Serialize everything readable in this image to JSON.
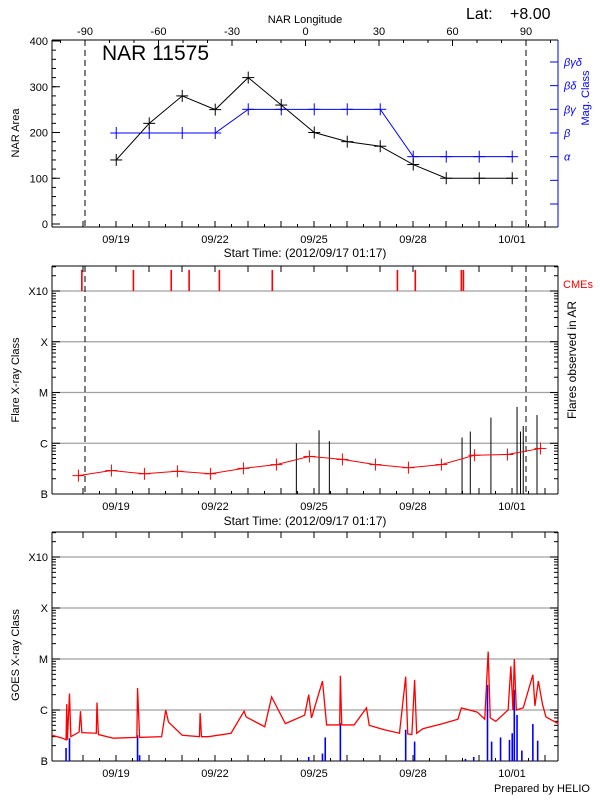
{
  "header": {
    "lat_label": "Lat:",
    "lat_value": "+8.00",
    "footer": "Prepared by HELIO"
  },
  "colors": {
    "area": "#000000",
    "mag_class": "#0000ff",
    "cme": "#ff0000",
    "flare_background": "#ff0000",
    "flare": "#000000",
    "goes_long": "#ff0000",
    "goes_short": "#0000ff",
    "grid": "#a0a0a0"
  },
  "chart_data": [
    {
      "type": "line",
      "title": "NAR 11575",
      "top_axis_label": "NAR Longitude",
      "top_axis_ticks": [
        -90,
        -60,
        -30,
        0,
        30,
        60,
        90
      ],
      "xlabel": "Start Time: (2012/09/17 01:17)",
      "x_ticks": [
        "09/19",
        "09/22",
        "09/25",
        "09/28",
        "10/01"
      ],
      "ylabel": "NAR Area",
      "ylim": [
        0,
        400
      ],
      "y_ticks": [
        0,
        100,
        200,
        300,
        400
      ],
      "y2label": "Mag. Class",
      "y2_ticks": [
        "",
        "",
        "α",
        "β",
        "βγ",
        "βδ",
        "βγδ"
      ],
      "limb_longitudes": [
        -90,
        90
      ],
      "x": [
        "2012-09-19 00:00",
        "2012-09-20 00:00",
        "2012-09-21 00:00",
        "2012-09-22 00:00",
        "2012-09-23 00:00",
        "2012-09-24 00:00",
        "2012-09-25 00:00",
        "2012-09-26 00:00",
        "2012-09-27 00:00",
        "2012-09-28 00:00",
        "2012-09-29 00:00",
        "2012-09-30 00:00",
        "2012-10-01 00:00"
      ],
      "series": [
        {
          "axis": "left",
          "values": [
            140,
            220,
            280,
            250,
            320,
            260,
            200,
            180,
            170,
            130,
            100,
            100,
            100
          ]
        },
        {
          "axis": "right",
          "values": [
            "β",
            "β",
            "β",
            "β",
            "βγ",
            "βγ",
            "βγ",
            "βγ",
            "βγ",
            "α",
            "α",
            "α",
            "α"
          ]
        }
      ]
    },
    {
      "type": "line",
      "xlabel": "Start Time: (2012/09/17 01:17)",
      "x_ticks": [
        "09/19",
        "09/22",
        "09/25",
        "09/28",
        "10/01"
      ],
      "ylabel": "Flare X-ray Class",
      "y_scale": "log",
      "y_ticks": [
        "B",
        "C",
        "M",
        "X",
        "X10"
      ],
      "grid": true,
      "y2label": "Flares observed in AR",
      "cme_label": "CMEs",
      "cmes": [
        "2012-09-17 23:00",
        "2012-09-19 12:30",
        "2012-09-20 16:00",
        "2012-09-21 05:00",
        "2012-09-22 03:00",
        "2012-09-23 17:30",
        "2012-09-27 12:30",
        "2012-09-28 01:30",
        "2012-09-29 11:00",
        "2012-09-29 12:30"
      ],
      "background": {
        "x": [
          "2012-09-17 20:30",
          "2012-09-18 20:30",
          "2012-09-19 20:30",
          "2012-09-20 20:30",
          "2012-09-21 20:30",
          "2012-09-22 20:30",
          "2012-09-23 20:30",
          "2012-09-24 20:30",
          "2012-09-25 20:30",
          "2012-09-26 20:30",
          "2012-09-27 20:30",
          "2012-09-28 20:30",
          "2012-09-29 20:30",
          "2012-09-30 20:30",
          "2012-10-01 20:30"
        ],
        "values": [
          "B2.3",
          "B2.9",
          "B2.5",
          "B2.8",
          "B2.5",
          "B3.2",
          "B3.8",
          "B5.5",
          "B4.8",
          "B3.8",
          "B3.3",
          "B3.8",
          "B5.8",
          "B6.0",
          "B7.9"
        ]
      },
      "flares": [
        {
          "t": "2012-09-24 11:00",
          "class": "C1.0"
        },
        {
          "t": "2012-09-25 03:30",
          "class": "C1.8"
        },
        {
          "t": "2012-09-25 11:00",
          "class": "C1.1"
        },
        {
          "t": "2012-09-29 11:30",
          "class": "C1.3"
        },
        {
          "t": "2012-09-29 17:30",
          "class": "C1.7"
        },
        {
          "t": "2012-09-30 08:30",
          "class": "C3.2"
        },
        {
          "t": "2012-10-01 03:30",
          "class": "C5.2"
        },
        {
          "t": "2012-10-01 06:00",
          "class": "C1.7"
        },
        {
          "t": "2012-10-01 08:00",
          "class": "C2.2"
        },
        {
          "t": "2012-10-01 18:00",
          "class": "C3.6"
        }
      ]
    },
    {
      "type": "line",
      "x_ticks": [
        "09/19",
        "09/22",
        "09/25",
        "09/28",
        "10/01"
      ],
      "ylabel": "GOES X-ray Class",
      "y_scale": "log",
      "y_ticks": [
        "B",
        "C",
        "M",
        "X",
        "X10"
      ],
      "grid": true,
      "long_channel": [
        [
          "2012-09-17 01:17",
          "B3.2"
        ],
        [
          "2012-09-17 09:00",
          "B2.8"
        ],
        [
          "2012-09-17 11:30",
          "B2.6"
        ],
        [
          "2012-09-17 12:00",
          "C1.3"
        ],
        [
          "2012-09-17 12:30",
          "B2.6"
        ],
        [
          "2012-09-17 14:00",
          "C2.1"
        ],
        [
          "2012-09-17 15:00",
          "B3.0"
        ],
        [
          "2012-09-17 21:00",
          "B3.7"
        ],
        [
          "2012-09-17 22:00",
          "B9.5"
        ],
        [
          "2012-09-17 23:00",
          "B3.6"
        ],
        [
          "2012-09-18 09:30",
          "B3.5"
        ],
        [
          "2012-09-18 10:00",
          "C1.4"
        ],
        [
          "2012-09-18 11:00",
          "B3.3"
        ],
        [
          "2012-09-18 22:00",
          "B2.8"
        ],
        [
          "2012-09-19 15:00",
          "B2.9"
        ],
        [
          "2012-09-19 15:30",
          "C2.7"
        ],
        [
          "2012-09-19 17:00",
          "B2.9"
        ],
        [
          "2012-09-20 09:00",
          "B3.0"
        ],
        [
          "2012-09-20 12:00",
          "C1.0"
        ],
        [
          "2012-09-20 14:00",
          "B5.8"
        ],
        [
          "2012-09-21 00:00",
          "B3.2"
        ],
        [
          "2012-09-21 12:30",
          "B3.0"
        ],
        [
          "2012-09-21 13:00",
          "B8.7"
        ],
        [
          "2012-09-21 14:00",
          "B3.0"
        ],
        [
          "2012-09-21 19:00",
          "B3.0"
        ],
        [
          "2012-09-22 11:30",
          "B3.5"
        ],
        [
          "2012-09-22 21:00",
          "B9.5"
        ],
        [
          "2012-09-22 22:30",
          "B7.3"
        ],
        [
          "2012-09-23 12:00",
          "B4.7"
        ],
        [
          "2012-09-23 17:00",
          "C1.8"
        ],
        [
          "2012-09-24 03:00",
          "B5.4"
        ],
        [
          "2012-09-24 17:00",
          "B7.9"
        ],
        [
          "2012-09-24 20:00",
          "C2.0"
        ],
        [
          "2012-09-24 22:00",
          "B7.0"
        ],
        [
          "2012-09-25 06:00",
          "C3.7"
        ],
        [
          "2012-09-25 09:00",
          "B5.1"
        ],
        [
          "2012-09-25 18:30",
          "B5.1"
        ],
        [
          "2012-09-25 19:00",
          "C4.7"
        ],
        [
          "2012-09-25 20:00",
          "B5.1"
        ],
        [
          "2012-09-26 05:00",
          "B5.1"
        ],
        [
          "2012-09-26 14:00",
          "C1.1"
        ],
        [
          "2012-09-26 16:00",
          "B5.0"
        ],
        [
          "2012-09-27 03:00",
          "B4.1"
        ],
        [
          "2012-09-27 14:00",
          "B3.5"
        ],
        [
          "2012-09-27 18:30",
          "C4.5"
        ],
        [
          "2012-09-27 20:00",
          "B3.4"
        ],
        [
          "2012-09-27 23:00",
          "B3.3"
        ],
        [
          "2012-09-28 01:00",
          "C3.9"
        ],
        [
          "2012-09-28 02:30",
          "B3.5"
        ],
        [
          "2012-09-28 07:00",
          "B4.3"
        ],
        [
          "2012-09-28 21:30",
          "B5.4"
        ],
        [
          "2012-09-29 08:30",
          "B6.6"
        ],
        [
          "2012-09-29 11:00",
          "C1.1"
        ],
        [
          "2012-09-29 22:30",
          "B9.1"
        ],
        [
          "2012-09-30 04:00",
          "B6.6"
        ],
        [
          "2012-09-30 06:30",
          "M1.4"
        ],
        [
          "2012-09-30 08:00",
          "B7.0"
        ],
        [
          "2012-09-30 12:00",
          "B6.0"
        ],
        [
          "2012-09-30 21:00",
          "C1.0"
        ],
        [
          "2012-09-30 23:00",
          "C7.2"
        ],
        [
          "2012-10-01 00:30",
          "C1.0"
        ],
        [
          "2012-10-01 01:30",
          "M1.0"
        ],
        [
          "2012-10-01 03:00",
          "C1.0"
        ],
        [
          "2012-10-01 08:00",
          "C1.1"
        ],
        [
          "2012-10-01 15:00",
          "C4.9"
        ],
        [
          "2012-10-01 16:30",
          "C1.2"
        ],
        [
          "2012-10-01 19:00",
          "C3.7"
        ],
        [
          "2012-10-01 22:00",
          "C1.3"
        ],
        [
          "2012-10-02 00:30",
          "B7.3"
        ],
        [
          "2012-10-02 09:30",
          "B5.4"
        ]
      ],
      "short_channel": [
        [
          "2012-09-17 11:30",
          "B1.8"
        ],
        [
          "2012-09-17 14:00",
          "B2.8"
        ],
        [
          "2012-09-19 15:30",
          "B3.2"
        ],
        [
          "2012-09-19 17:00",
          "B1.3"
        ],
        [
          "2012-09-24 20:00",
          "B1.2"
        ],
        [
          "2012-09-25 06:00",
          "B1.4"
        ],
        [
          "2012-09-25 08:00",
          "B2.9"
        ],
        [
          "2012-09-25 19:00",
          "B5.5"
        ],
        [
          "2012-09-27 18:30",
          "B4.1"
        ],
        [
          "2012-09-28 01:00",
          "B2.4"
        ],
        [
          "2012-09-29 14:00",
          "B1.1"
        ],
        [
          "2012-09-29 20:00",
          "B1.2"
        ],
        [
          "2012-09-30 06:00",
          "C3.1"
        ],
        [
          "2012-09-30 09:00",
          "B2.4"
        ],
        [
          "2012-09-30 15:30",
          "B2.9"
        ],
        [
          "2012-09-30 22:00",
          "B2.6"
        ],
        [
          "2012-10-01 00:00",
          "B3.5"
        ],
        [
          "2012-10-01 01:30",
          "C2.5"
        ],
        [
          "2012-10-01 03:30",
          "B8.0"
        ],
        [
          "2012-10-01 07:00",
          "B1.6"
        ],
        [
          "2012-10-01 15:00",
          "B5.3"
        ],
        [
          "2012-10-01 18:30",
          "B2.5"
        ]
      ]
    }
  ]
}
